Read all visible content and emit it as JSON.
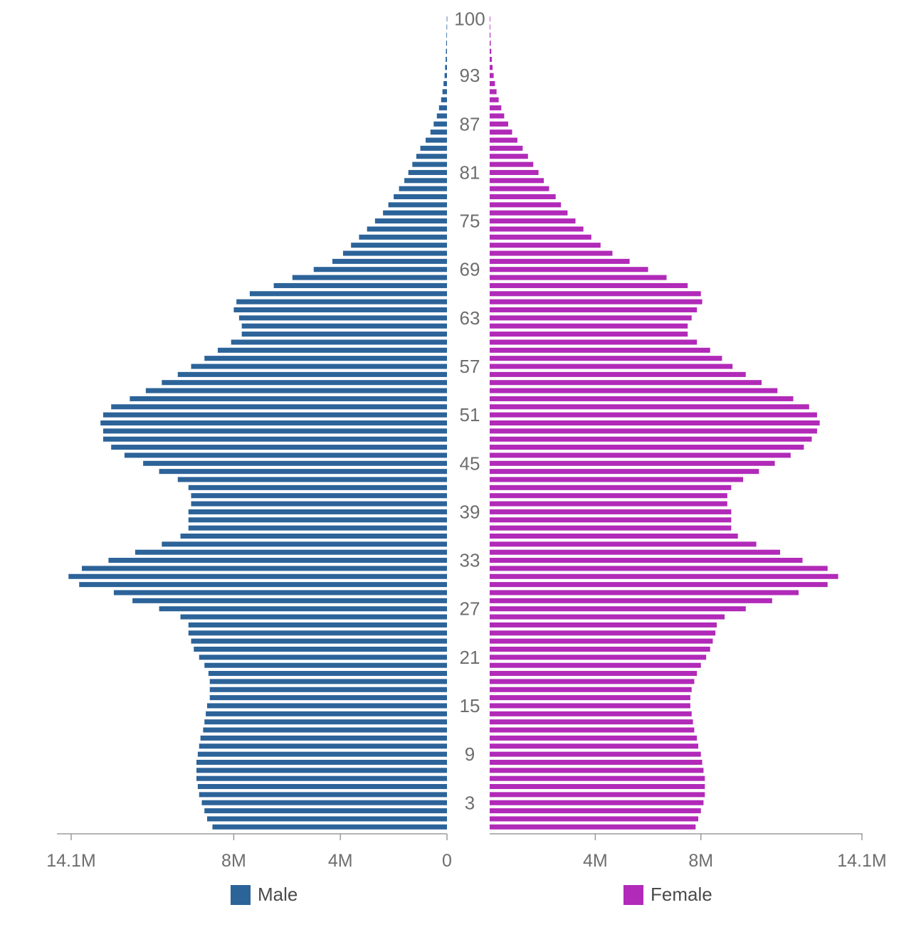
{
  "chart_data": {
    "type": "bar",
    "subtype": "population-pyramid",
    "title": "",
    "ages": [
      0,
      1,
      2,
      3,
      4,
      5,
      6,
      7,
      8,
      9,
      10,
      11,
      12,
      13,
      14,
      15,
      16,
      17,
      18,
      19,
      20,
      21,
      22,
      23,
      24,
      25,
      26,
      27,
      28,
      29,
      30,
      31,
      32,
      33,
      34,
      35,
      36,
      37,
      38,
      39,
      40,
      41,
      42,
      43,
      44,
      45,
      46,
      47,
      48,
      49,
      50,
      51,
      52,
      53,
      54,
      55,
      56,
      57,
      58,
      59,
      60,
      61,
      62,
      63,
      64,
      65,
      66,
      67,
      68,
      69,
      70,
      71,
      72,
      73,
      74,
      75,
      76,
      77,
      78,
      79,
      80,
      81,
      82,
      83,
      84,
      85,
      86,
      87,
      88,
      89,
      90,
      91,
      92,
      93,
      94,
      95,
      96,
      97,
      98,
      99,
      100
    ],
    "age_tick_labels": [
      "3",
      "9",
      "15",
      "21",
      "27",
      "33",
      "39",
      "45",
      "51",
      "57",
      "63",
      "69",
      "75",
      "81",
      "87",
      "93",
      "100"
    ],
    "age_tick_values": [
      3,
      9,
      15,
      21,
      27,
      33,
      39,
      45,
      51,
      57,
      63,
      69,
      75,
      81,
      87,
      93,
      100
    ],
    "series": [
      {
        "name": "Male",
        "color": "#2c6399",
        "values": [
          8.8,
          9.0,
          9.1,
          9.2,
          9.3,
          9.35,
          9.4,
          9.4,
          9.4,
          9.35,
          9.3,
          9.25,
          9.15,
          9.1,
          9.05,
          9.0,
          8.9,
          8.9,
          8.9,
          8.95,
          9.1,
          9.3,
          9.5,
          9.6,
          9.7,
          9.7,
          10.0,
          10.8,
          11.8,
          12.5,
          13.8,
          14.2,
          13.7,
          12.7,
          11.7,
          10.7,
          10.0,
          9.7,
          9.7,
          9.7,
          9.6,
          9.6,
          9.7,
          10.1,
          10.8,
          11.4,
          12.1,
          12.6,
          12.9,
          12.9,
          13.0,
          12.9,
          12.6,
          11.9,
          11.3,
          10.7,
          10.1,
          9.6,
          9.1,
          8.6,
          8.1,
          7.7,
          7.7,
          7.8,
          8.0,
          7.9,
          7.4,
          6.5,
          5.8,
          5.0,
          4.3,
          3.9,
          3.6,
          3.3,
          3.0,
          2.7,
          2.4,
          2.2,
          2.0,
          1.8,
          1.6,
          1.45,
          1.3,
          1.15,
          1.0,
          0.8,
          0.62,
          0.5,
          0.38,
          0.3,
          0.22,
          0.17,
          0.13,
          0.09,
          0.07,
          0.05,
          0.04,
          0.03,
          0.02,
          0.015,
          0.01
        ]
      },
      {
        "name": "Female",
        "color": "#b12ab8",
        "values": [
          7.8,
          7.9,
          8.0,
          8.1,
          8.15,
          8.15,
          8.15,
          8.1,
          8.05,
          8.0,
          7.9,
          7.85,
          7.75,
          7.7,
          7.65,
          7.6,
          7.6,
          7.65,
          7.75,
          7.85,
          8.0,
          8.2,
          8.35,
          8.45,
          8.55,
          8.6,
          8.9,
          9.7,
          10.7,
          11.7,
          12.8,
          13.2,
          12.8,
          11.85,
          11.0,
          10.1,
          9.4,
          9.15,
          9.15,
          9.15,
          9.0,
          9.0,
          9.15,
          9.6,
          10.2,
          10.8,
          11.4,
          11.9,
          12.2,
          12.4,
          12.5,
          12.4,
          12.1,
          11.5,
          10.9,
          10.3,
          9.7,
          9.2,
          8.8,
          8.35,
          7.85,
          7.5,
          7.5,
          7.65,
          7.85,
          8.05,
          8.0,
          7.5,
          6.7,
          6.0,
          5.3,
          4.65,
          4.2,
          3.85,
          3.55,
          3.25,
          2.95,
          2.7,
          2.5,
          2.25,
          2.05,
          1.85,
          1.65,
          1.45,
          1.25,
          1.05,
          0.85,
          0.7,
          0.55,
          0.44,
          0.34,
          0.26,
          0.2,
          0.15,
          0.11,
          0.08,
          0.06,
          0.04,
          0.03,
          0.02,
          0.015
        ]
      }
    ],
    "xaxis": {
      "left_ticks": [
        {
          "value": 14.1,
          "label": "14.1M"
        },
        {
          "value": 8,
          "label": "8M"
        },
        {
          "value": 4,
          "label": "4M"
        },
        {
          "value": 0,
          "label": "0"
        }
      ],
      "right_ticks": [
        {
          "value": 4,
          "label": "4M"
        },
        {
          "value": 8,
          "label": "8M"
        },
        {
          "value": 14.1,
          "label": "14.1M"
        }
      ],
      "xlim": [
        0,
        14.1
      ],
      "unit": "M"
    },
    "legend_position": "bottom",
    "grid": false
  },
  "legend": {
    "male_label": "Male",
    "female_label": "Female"
  },
  "colors": {
    "male": "#2c6399",
    "female": "#b12ab8",
    "axis": "#9b9b9b",
    "text": "#6e6e6e"
  }
}
